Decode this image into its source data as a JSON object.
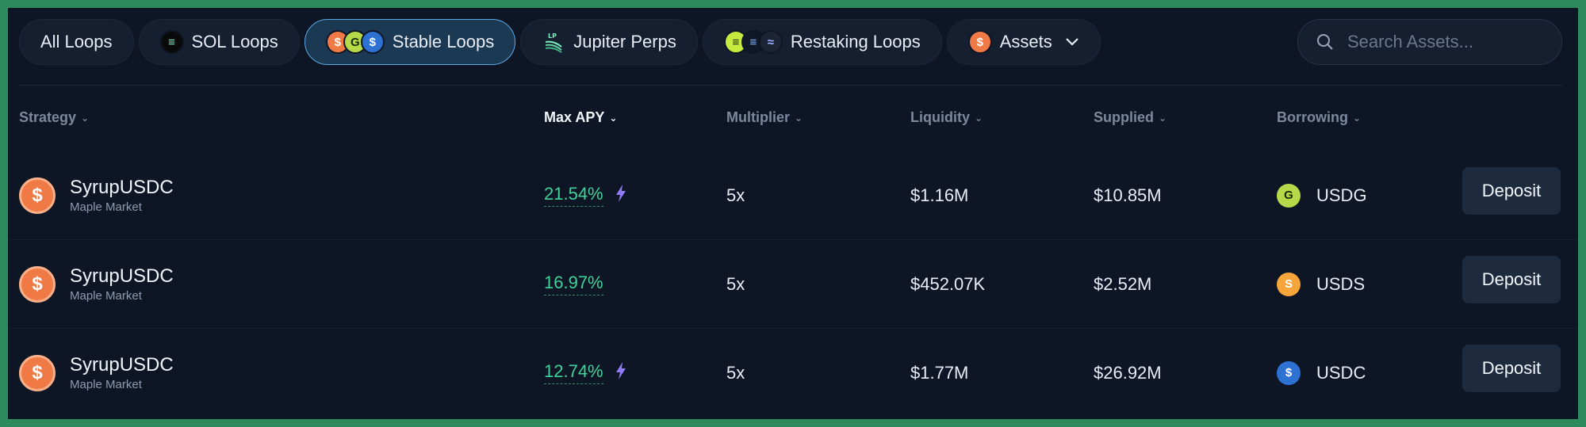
{
  "tabs": [
    {
      "label": "All Loops",
      "active": false
    },
    {
      "label": "SOL Loops",
      "active": false
    },
    {
      "label": "Stable Loops",
      "active": true
    },
    {
      "label": "Jupiter Perps",
      "active": false
    },
    {
      "label": "Restaking Loops",
      "active": false
    },
    {
      "label": "Assets",
      "active": false
    }
  ],
  "search": {
    "placeholder": "Search Assets..."
  },
  "columns": {
    "strategy": "Strategy",
    "max_apy": "Max APY",
    "multiplier": "Multiplier",
    "liquidity": "Liquidity",
    "supplied": "Supplied",
    "borrowing": "Borrowing"
  },
  "rows": [
    {
      "name": "SyrupUSDC",
      "market": "Maple Market",
      "apy": "21.54%",
      "boosted": true,
      "multiplier": "5x",
      "liquidity": "$1.16M",
      "supplied": "$10.85M",
      "borrow": "USDG",
      "borrow_icon": "usdg-icon",
      "action": "Deposit"
    },
    {
      "name": "SyrupUSDC",
      "market": "Maple Market",
      "apy": "16.97%",
      "boosted": false,
      "multiplier": "5x",
      "liquidity": "$452.07K",
      "supplied": "$2.52M",
      "borrow": "USDS",
      "borrow_icon": "usds-icon",
      "action": "Deposit"
    },
    {
      "name": "SyrupUSDC",
      "market": "Maple Market",
      "apy": "12.74%",
      "boosted": true,
      "multiplier": "5x",
      "liquidity": "$1.77M",
      "supplied": "$26.92M",
      "borrow": "USDC",
      "borrow_icon": "usdc-icon",
      "action": "Deposit"
    }
  ],
  "colors": {
    "frame_border": "#2e8b5e",
    "background": "#0e1626",
    "apy_green": "#3fd39a",
    "active_tab_border": "#5aa9e6",
    "bolt": "#8f7cf5"
  }
}
